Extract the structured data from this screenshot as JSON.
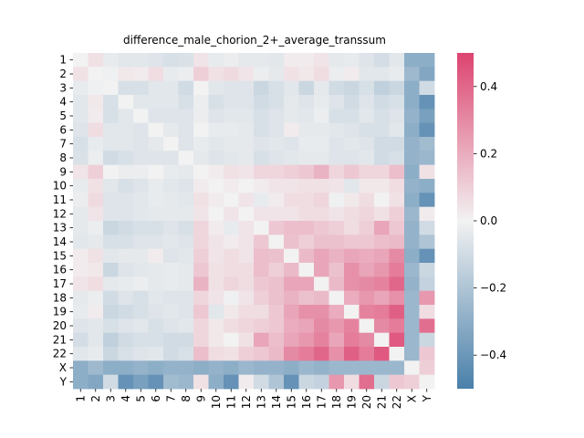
{
  "chart_data": {
    "type": "heatmap",
    "title": "difference_male_chorion_2+_average_transsum",
    "labels": [
      "1",
      "2",
      "3",
      "4",
      "5",
      "6",
      "7",
      "8",
      "9",
      "10",
      "11",
      "12",
      "13",
      "14",
      "15",
      "16",
      "17",
      "18",
      "19",
      "20",
      "21",
      "22",
      "X",
      "Y"
    ],
    "colorbar": {
      "vmin": -0.5,
      "vmax": 0.5,
      "ticks": [
        -0.4,
        -0.2,
        0.0,
        0.2,
        0.4
      ],
      "tick_labels": [
        "−0.4",
        "−0.2",
        "0.0",
        "0.2",
        "0.4"
      ]
    },
    "colormap": {
      "negative": "#4a80aa",
      "center": "#f2f2f2",
      "positive": "#dd4470"
    },
    "values": [
      [
        0.0,
        0.05,
        -0.03,
        -0.05,
        -0.05,
        -0.06,
        -0.08,
        -0.07,
        0.04,
        -0.03,
        -0.02,
        -0.04,
        -0.04,
        -0.05,
        0.02,
        0.02,
        0.04,
        -0.04,
        -0.03,
        -0.06,
        -0.09,
        -0.05,
        -0.3,
        -0.3
      ],
      [
        0.05,
        0.0,
        -0.01,
        0.03,
        0.02,
        0.06,
        -0.03,
        -0.02,
        0.1,
        0.05,
        0.07,
        0.04,
        -0.02,
        -0.04,
        0.05,
        0.03,
        0.06,
        -0.02,
        0.02,
        -0.05,
        -0.05,
        -0.03,
        -0.25,
        -0.33
      ],
      [
        -0.03,
        -0.01,
        0.0,
        -0.08,
        -0.08,
        -0.05,
        -0.05,
        -0.1,
        0.0,
        -0.05,
        -0.06,
        -0.06,
        -0.12,
        -0.08,
        -0.05,
        -0.12,
        -0.04,
        -0.1,
        -0.12,
        -0.08,
        -0.15,
        -0.12,
        -0.3,
        -0.1
      ],
      [
        -0.05,
        0.03,
        -0.08,
        0.0,
        -0.05,
        -0.05,
        -0.05,
        -0.08,
        -0.02,
        -0.08,
        -0.06,
        -0.06,
        -0.1,
        -0.08,
        -0.04,
        -0.06,
        -0.03,
        -0.06,
        -0.1,
        -0.06,
        -0.1,
        -0.08,
        -0.3,
        -0.42
      ],
      [
        -0.05,
        0.02,
        -0.08,
        -0.05,
        0.0,
        -0.06,
        -0.06,
        -0.06,
        -0.02,
        -0.06,
        -0.05,
        -0.05,
        -0.08,
        -0.06,
        -0.04,
        -0.05,
        -0.02,
        -0.08,
        -0.08,
        -0.05,
        -0.08,
        -0.06,
        -0.28,
        -0.36
      ],
      [
        -0.06,
        0.06,
        -0.05,
        -0.05,
        -0.06,
        0.0,
        -0.04,
        -0.06,
        0.0,
        -0.03,
        -0.03,
        -0.04,
        -0.08,
        -0.06,
        0.02,
        -0.04,
        -0.04,
        -0.05,
        -0.06,
        -0.08,
        -0.08,
        -0.05,
        -0.3,
        -0.42
      ],
      [
        -0.08,
        -0.03,
        -0.05,
        -0.05,
        -0.06,
        -0.04,
        0.0,
        -0.06,
        -0.03,
        -0.05,
        -0.04,
        -0.04,
        -0.06,
        -0.05,
        -0.06,
        -0.03,
        -0.03,
        -0.06,
        -0.05,
        -0.06,
        -0.1,
        -0.1,
        -0.28,
        -0.24
      ],
      [
        -0.07,
        -0.02,
        -0.1,
        -0.08,
        -0.06,
        -0.06,
        -0.06,
        0.0,
        -0.04,
        -0.06,
        -0.05,
        -0.04,
        -0.08,
        -0.06,
        -0.05,
        -0.04,
        -0.04,
        -0.06,
        -0.06,
        -0.05,
        -0.1,
        -0.08,
        -0.28,
        -0.26
      ],
      [
        0.04,
        0.1,
        0.0,
        -0.02,
        -0.02,
        0.0,
        -0.03,
        -0.04,
        0.0,
        0.02,
        0.05,
        0.04,
        0.08,
        0.08,
        0.1,
        0.12,
        0.18,
        0.08,
        0.12,
        0.08,
        0.08,
        0.15,
        -0.3,
        0.05
      ],
      [
        -0.03,
        0.05,
        -0.05,
        -0.08,
        -0.06,
        -0.03,
        -0.05,
        -0.06,
        0.02,
        0.0,
        0.02,
        0.0,
        0.02,
        0.04,
        0.04,
        0.05,
        0.05,
        0.04,
        -0.05,
        0.03,
        0.03,
        0.06,
        -0.28,
        -0.3
      ],
      [
        -0.02,
        0.07,
        -0.06,
        -0.06,
        -0.05,
        -0.03,
        -0.04,
        -0.05,
        0.05,
        0.02,
        0.0,
        0.04,
        -0.03,
        0.02,
        0.06,
        0.06,
        0.08,
        -0.01,
        0.03,
        0.06,
        0.0,
        0.05,
        -0.3,
        -0.42
      ],
      [
        -0.04,
        0.04,
        -0.06,
        -0.06,
        -0.05,
        -0.04,
        -0.04,
        -0.04,
        0.04,
        0.0,
        0.04,
        0.0,
        0.04,
        0.04,
        0.04,
        0.06,
        0.06,
        0.04,
        0.06,
        0.08,
        0.05,
        0.1,
        -0.26,
        0.02
      ],
      [
        -0.04,
        -0.02,
        -0.12,
        -0.1,
        -0.08,
        -0.08,
        -0.06,
        -0.08,
        0.08,
        0.02,
        -0.03,
        0.04,
        0.0,
        0.12,
        0.15,
        0.15,
        0.12,
        0.1,
        0.06,
        0.1,
        0.22,
        0.12,
        -0.28,
        -0.1
      ],
      [
        -0.05,
        -0.04,
        -0.08,
        -0.08,
        -0.06,
        -0.06,
        -0.05,
        -0.06,
        0.08,
        0.04,
        0.02,
        0.04,
        0.12,
        0.0,
        0.14,
        0.1,
        0.14,
        0.14,
        0.12,
        0.12,
        0.15,
        0.16,
        -0.28,
        -0.2
      ],
      [
        0.02,
        0.05,
        -0.05,
        -0.04,
        -0.04,
        0.02,
        -0.06,
        -0.05,
        0.1,
        0.04,
        0.06,
        0.04,
        0.15,
        0.14,
        0.0,
        0.16,
        0.22,
        0.18,
        0.22,
        0.2,
        0.22,
        0.3,
        -0.3,
        -0.42
      ],
      [
        0.02,
        0.03,
        -0.12,
        -0.06,
        -0.05,
        -0.04,
        -0.03,
        -0.04,
        0.12,
        0.05,
        0.06,
        0.06,
        0.15,
        0.1,
        0.16,
        0.0,
        0.22,
        0.14,
        0.28,
        0.22,
        0.26,
        0.34,
        -0.26,
        -0.12
      ],
      [
        0.04,
        0.06,
        -0.04,
        -0.03,
        -0.02,
        -0.04,
        -0.03,
        -0.04,
        0.18,
        0.05,
        0.08,
        0.06,
        0.12,
        0.14,
        0.22,
        0.22,
        0.0,
        0.16,
        0.28,
        0.3,
        0.32,
        0.4,
        -0.28,
        -0.14
      ],
      [
        -0.04,
        -0.02,
        -0.1,
        -0.06,
        -0.08,
        -0.05,
        -0.06,
        -0.06,
        0.08,
        0.04,
        -0.01,
        0.04,
        0.1,
        0.14,
        0.18,
        0.14,
        0.16,
        0.0,
        0.2,
        0.26,
        0.22,
        0.28,
        -0.26,
        0.26
      ],
      [
        -0.03,
        0.02,
        -0.12,
        -0.1,
        -0.08,
        -0.06,
        -0.05,
        -0.06,
        0.12,
        -0.05,
        0.03,
        0.06,
        0.06,
        0.12,
        0.22,
        0.28,
        0.28,
        0.2,
        0.0,
        0.32,
        0.34,
        0.42,
        -0.26,
        0.06
      ],
      [
        -0.06,
        -0.05,
        -0.08,
        -0.06,
        -0.05,
        -0.08,
        -0.06,
        -0.05,
        0.08,
        0.03,
        0.06,
        0.08,
        0.1,
        0.12,
        0.2,
        0.22,
        0.3,
        0.26,
        0.32,
        0.0,
        0.3,
        0.34,
        -0.26,
        0.38
      ],
      [
        -0.09,
        -0.05,
        -0.15,
        -0.1,
        -0.08,
        -0.08,
        -0.1,
        -0.1,
        0.08,
        0.03,
        0.0,
        0.05,
        0.22,
        0.15,
        0.22,
        0.26,
        0.32,
        0.22,
        0.34,
        0.3,
        0.0,
        0.44,
        -0.26,
        -0.12
      ],
      [
        -0.05,
        -0.03,
        -0.12,
        -0.08,
        -0.06,
        -0.05,
        -0.1,
        -0.08,
        0.15,
        0.06,
        0.05,
        0.1,
        0.12,
        0.16,
        0.3,
        0.34,
        0.4,
        0.28,
        0.42,
        0.34,
        0.44,
        0.0,
        -0.26,
        0.12
      ],
      [
        -0.3,
        -0.25,
        -0.3,
        -0.3,
        -0.28,
        -0.3,
        -0.28,
        -0.28,
        -0.3,
        -0.28,
        -0.3,
        -0.26,
        -0.28,
        -0.28,
        -0.3,
        -0.26,
        -0.28,
        -0.26,
        -0.26,
        -0.26,
        -0.26,
        -0.26,
        0.0,
        0.1
      ],
      [
        -0.3,
        -0.33,
        -0.1,
        -0.42,
        -0.36,
        -0.42,
        -0.24,
        -0.26,
        0.05,
        -0.3,
        -0.42,
        0.02,
        -0.1,
        -0.2,
        -0.42,
        -0.12,
        -0.14,
        0.26,
        0.06,
        0.38,
        -0.12,
        0.12,
        0.1,
        0.0
      ]
    ]
  }
}
